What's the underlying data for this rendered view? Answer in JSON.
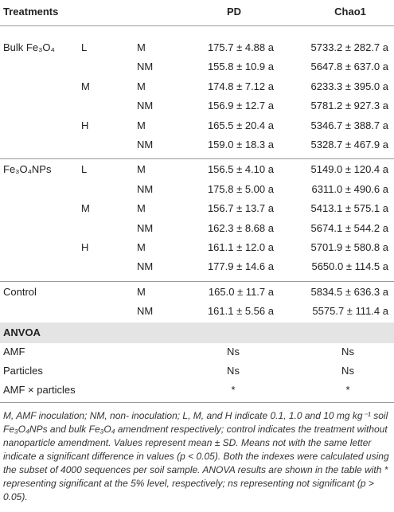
{
  "header": [
    "Treatments",
    "PD",
    "Chao1"
  ],
  "groups": [
    {
      "treatment": "Bulk Fe₃O₄",
      "levels": [
        {
          "level": "L",
          "rows": [
            {
              "inoculation": "M",
              "pd": "175.7 ± 4.88 a",
              "chao1": "5733.2 ± 282.7 a"
            },
            {
              "inoculation": "NM",
              "pd": "155.8 ± 10.9 a",
              "chao1": "5647.8 ± 637.0 a"
            }
          ]
        },
        {
          "level": "M",
          "rows": [
            {
              "inoculation": "M",
              "pd": "174.8 ± 7.12 a",
              "chao1": "6233.3 ± 395.0 a"
            },
            {
              "inoculation": "NM",
              "pd": "156.9 ± 12.7 a",
              "chao1": "5781.2 ± 927.3 a"
            }
          ]
        },
        {
          "level": "H",
          "rows": [
            {
              "inoculation": "M",
              "pd": "165.5 ± 20.4 a",
              "chao1": "5346.7 ± 388.7 a"
            },
            {
              "inoculation": "NM",
              "pd": "159.0 ± 18.3 a",
              "chao1": "5328.7 ± 467.9 a"
            }
          ]
        }
      ]
    },
    {
      "treatment": "Fe₃O₄NPs",
      "levels": [
        {
          "level": "L",
          "rows": [
            {
              "inoculation": "M",
              "pd": "156.5 ± 4.10 a",
              "chao1": "5149.0 ± 120.4 a"
            },
            {
              "inoculation": "NM",
              "pd": "175.8 ± 5.00 a",
              "chao1": "6311.0 ± 490.6 a"
            }
          ]
        },
        {
          "level": "M",
          "rows": [
            {
              "inoculation": "M",
              "pd": "156.7 ± 13.7 a",
              "chao1": "5413.1 ± 575.1 a"
            },
            {
              "inoculation": "NM",
              "pd": "162.3 ± 8.68 a",
              "chao1": "5674.1 ± 544.2 a"
            }
          ]
        },
        {
          "level": "H",
          "rows": [
            {
              "inoculation": "M",
              "pd": "161.1 ± 12.0 a",
              "chao1": "5701.9 ± 580.8 a"
            },
            {
              "inoculation": "NM",
              "pd": "177.9 ± 14.6 a",
              "chao1": "5650.0 ± 114.5 a"
            }
          ]
        }
      ]
    },
    {
      "treatment": "Control",
      "levels": [
        {
          "rows": [
            {
              "inoculation": "M",
              "pd": "165.0 ± 11.7 a",
              "chao1": "5834.5 ± 636.3 a"
            },
            {
              "inoculation": "NM",
              "pd": "161.1 ± 5.56 a",
              "chao1": "5575.7 ± 111.4 a"
            }
          ]
        }
      ]
    }
  ],
  "anova": {
    "title": "ANVOA",
    "rows": [
      {
        "label": "AMF",
        "pd": "Ns",
        "chao1": "Ns"
      },
      {
        "label": "Particles",
        "pd": "Ns",
        "chao1": "Ns"
      },
      {
        "label": "AMF × particles",
        "pd": "*",
        "chao1": "*"
      }
    ]
  },
  "footnote": "M, AMF inoculation; NM, non- inoculation; L, M, and H indicate 0.1, 1.0 and 10 mg kg⁻¹ soil Fe₃O₄NPs and bulk Fe₃O₄ amendment respectively; control indicates the treatment without nanoparticle amendment. Values represent mean ± SD. Means not with the same letter indicate a significant difference in values (p < 0.05). Both the indexes were calculated using the subset of 4000 sequences per soil sample. ANOVA results are shown in the table with * representing significant at the 5% level, respectively; ns representing not significant (p > 0.05)."
}
